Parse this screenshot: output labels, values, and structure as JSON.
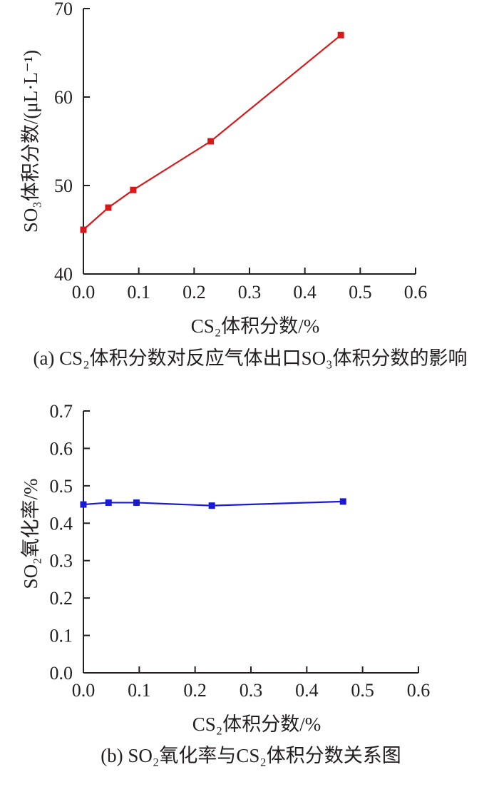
{
  "chart_data": [
    {
      "id": "a",
      "type": "line",
      "caption": "(a) CS₂体积分数对反应气体出口SO₃体积分数的影响",
      "xlabel": "CS₂体积分数/%",
      "ylabel": "SO₃体积分数/(μL·L⁻¹)",
      "xlim": [
        0,
        0.6
      ],
      "ylim": [
        40,
        70
      ],
      "x_ticks": [
        "0.0",
        "0.1",
        "0.2",
        "0.3",
        "0.4",
        "0.5",
        "0.6"
      ],
      "y_ticks": [
        "40",
        "50",
        "60",
        "70"
      ],
      "grid": false,
      "series": [
        {
          "color": "#d7191c",
          "x": [
            0,
            0.045,
            0.09,
            0.23,
            0.465
          ],
          "y": [
            45,
            47.5,
            49.5,
            55,
            67
          ]
        }
      ]
    },
    {
      "id": "b",
      "type": "line",
      "caption": "(b) SO₂氧化率与CS₂体积分数关系图",
      "xlabel": "CS₂体积分数/%",
      "ylabel": "SO₂氧化率/%",
      "xlim": [
        0,
        0.6
      ],
      "ylim": [
        0,
        0.7
      ],
      "x_ticks": [
        "0.0",
        "0.1",
        "0.2",
        "0.3",
        "0.4",
        "0.5",
        "0.6"
      ],
      "y_ticks": [
        "0.0",
        "0.1",
        "0.2",
        "0.3",
        "0.4",
        "0.5",
        "0.6",
        "0.7"
      ],
      "grid": false,
      "series": [
        {
          "color": "#1a1ad6",
          "x": [
            0,
            0.045,
            0.095,
            0.23,
            0.465
          ],
          "y": [
            0.45,
            0.455,
            0.455,
            0.447,
            0.458
          ]
        }
      ]
    }
  ]
}
